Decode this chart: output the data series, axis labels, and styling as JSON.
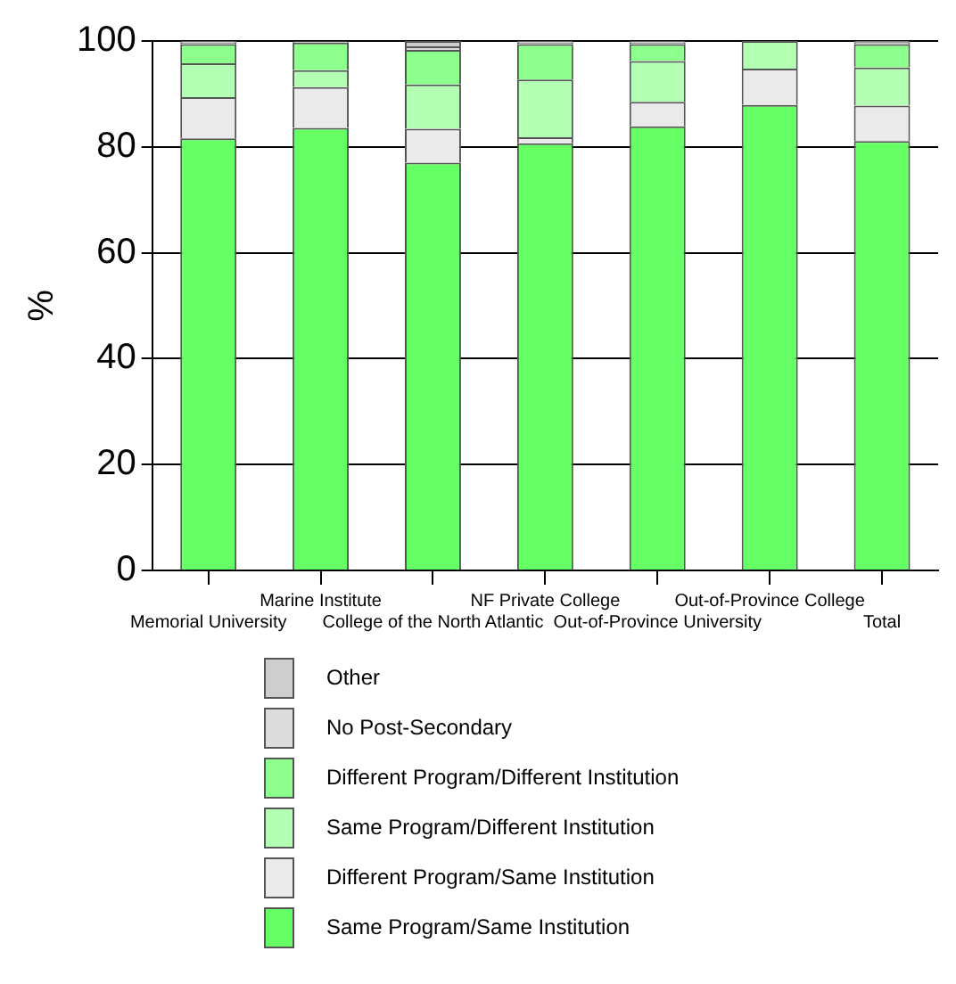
{
  "chart_data": {
    "type": "bar",
    "stacked": true,
    "ylabel": "%",
    "categories": [
      "Memorial University",
      "Marine Institute",
      "College of the North Atlantic",
      "NF Private College",
      "Out-of-Province University",
      "Out-of-Province College",
      "Total"
    ],
    "series": [
      {
        "name": "Same Program/Same Institution",
        "color": "#66ff66",
        "values": [
          81.6,
          83.6,
          77.0,
          80.7,
          83.9,
          87.9,
          81.1
        ]
      },
      {
        "name": "Different Program/Same Institution",
        "color": "#eaeaea",
        "values": [
          7.8,
          7.7,
          6.4,
          1.1,
          4.6,
          6.9,
          6.7
        ]
      },
      {
        "name": "Same Program/Different Institution",
        "color": "#b3ffb3",
        "values": [
          6.4,
          3.2,
          8.4,
          10.9,
          7.7,
          5.2,
          7.2
        ]
      },
      {
        "name": "Different Program/Different Institution",
        "color": "#8cff8c",
        "values": [
          3.6,
          5.2,
          6.5,
          6.7,
          3.2,
          0,
          4.4
        ]
      },
      {
        "name": "No Post-Secondary",
        "color": "#dcdcdc",
        "values": [
          0.3,
          0.2,
          0.7,
          0.3,
          0.3,
          0,
          0.4
        ]
      },
      {
        "name": "Other",
        "color": "#cecece",
        "values": [
          0.3,
          0.1,
          1.0,
          0.3,
          0.3,
          0,
          0.2
        ]
      }
    ],
    "ylim": [
      0,
      100
    ],
    "yticks": [
      0,
      20,
      40,
      60,
      80,
      100
    ],
    "grid": "y",
    "legend": "bottom"
  }
}
